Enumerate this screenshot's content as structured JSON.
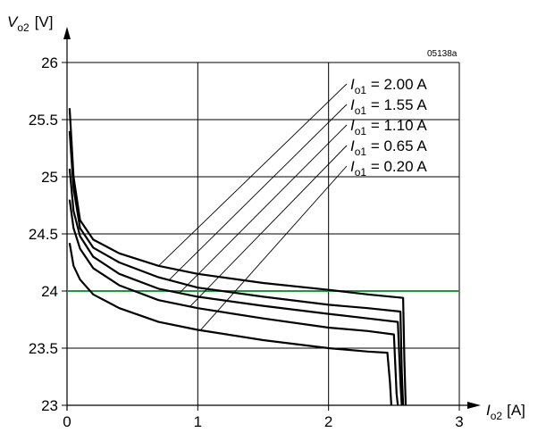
{
  "chart_data": {
    "type": "line",
    "figure_code": "05138a",
    "y_axis": {
      "symbol": "V",
      "subscript": "o2",
      "unit": "[V]",
      "range": [
        23,
        26
      ],
      "ticks": [
        "23",
        "23.5",
        "24",
        "24.5",
        "25",
        "25.5",
        "26"
      ]
    },
    "x_axis": {
      "symbol": "I",
      "subscript": "o2",
      "unit": "[A]",
      "range": [
        0,
        3
      ],
      "ticks": [
        "0",
        "1",
        "2",
        "3"
      ]
    },
    "grid": true,
    "reference_line": {
      "y": 24,
      "color": "#1a9a3a"
    },
    "series": [
      {
        "name": "I",
        "sub": "o1",
        "value": " = 2.00 A",
        "color": "#000000",
        "points": [
          [
            0.02,
            25.6
          ],
          [
            0.05,
            25.0
          ],
          [
            0.1,
            24.62
          ],
          [
            0.2,
            24.45
          ],
          [
            0.4,
            24.33
          ],
          [
            0.7,
            24.22
          ],
          [
            1.0,
            24.15
          ],
          [
            1.5,
            24.07
          ],
          [
            2.0,
            24.01
          ],
          [
            2.3,
            23.97
          ],
          [
            2.57,
            23.94
          ],
          [
            2.58,
            23.4
          ],
          [
            2.59,
            23.0
          ]
        ]
      },
      {
        "name": "I",
        "sub": "o1",
        "value": " = 1.55 A",
        "color": "#000000",
        "points": [
          [
            0.02,
            25.4
          ],
          [
            0.05,
            24.9
          ],
          [
            0.1,
            24.55
          ],
          [
            0.2,
            24.38
          ],
          [
            0.4,
            24.25
          ],
          [
            0.7,
            24.12
          ],
          [
            1.0,
            24.03
          ],
          [
            1.5,
            23.95
          ],
          [
            2.0,
            23.88
          ],
          [
            2.3,
            23.85
          ],
          [
            2.55,
            23.82
          ],
          [
            2.56,
            23.3
          ],
          [
            2.57,
            23.0
          ]
        ]
      },
      {
        "name": "I",
        "sub": "o1",
        "value": " = 1.10 A",
        "color": "#000000",
        "points": [
          [
            0.02,
            25.07
          ],
          [
            0.05,
            24.7
          ],
          [
            0.1,
            24.48
          ],
          [
            0.2,
            24.3
          ],
          [
            0.4,
            24.15
          ],
          [
            0.7,
            24.02
          ],
          [
            1.0,
            23.95
          ],
          [
            1.5,
            23.87
          ],
          [
            2.0,
            23.8
          ],
          [
            2.3,
            23.76
          ],
          [
            2.53,
            23.73
          ],
          [
            2.55,
            23.2
          ],
          [
            2.56,
            23.0
          ]
        ]
      },
      {
        "name": "I",
        "sub": "o1",
        "value": " = 0.65 A",
        "color": "#000000",
        "points": [
          [
            0.02,
            24.8
          ],
          [
            0.05,
            24.55
          ],
          [
            0.1,
            24.37
          ],
          [
            0.2,
            24.2
          ],
          [
            0.4,
            24.05
          ],
          [
            0.7,
            23.92
          ],
          [
            1.0,
            23.85
          ],
          [
            1.5,
            23.76
          ],
          [
            2.0,
            23.68
          ],
          [
            2.3,
            23.65
          ],
          [
            2.5,
            23.62
          ],
          [
            2.52,
            23.1
          ],
          [
            2.53,
            23.0
          ]
        ]
      },
      {
        "name": "I",
        "sub": "o1",
        "value": " = 0.20 A",
        "color": "#000000",
        "points": [
          [
            0.02,
            24.42
          ],
          [
            0.05,
            24.22
          ],
          [
            0.1,
            24.1
          ],
          [
            0.2,
            23.97
          ],
          [
            0.4,
            23.85
          ],
          [
            0.7,
            23.73
          ],
          [
            1.0,
            23.66
          ],
          [
            1.5,
            23.57
          ],
          [
            2.0,
            23.5
          ],
          [
            2.3,
            23.47
          ],
          [
            2.45,
            23.46
          ],
          [
            2.47,
            23.2
          ],
          [
            2.48,
            23.0
          ]
        ]
      }
    ]
  }
}
